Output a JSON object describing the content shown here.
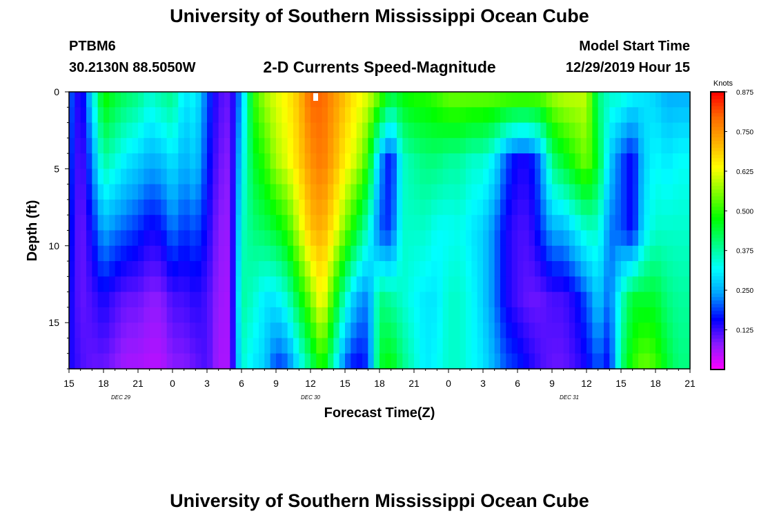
{
  "header": {
    "title": "University of Southern Mississippi Ocean Cube",
    "station": "PTBM6",
    "coords": "30.2130N 88.5050W",
    "subtitle": "2-D Currents Speed-Magnitude",
    "model_start_label": "Model Start Time",
    "model_start_value": "12/29/2019 Hour 15"
  },
  "footer": {
    "title": "University of Southern Mississippi Ocean Cube"
  },
  "colors": {
    "colorbar": [
      "#ff00ff",
      "#8c1aff",
      "#0000ff",
      "#00a0ff",
      "#00ffff",
      "#00ff80",
      "#00ff00",
      "#80ff00",
      "#ffff00",
      "#ffb000",
      "#ff6a00",
      "#ff0000"
    ]
  },
  "chart_data": {
    "type": "heatmap",
    "title": "2-D Currents Speed-Magnitude",
    "xlabel": "Forecast Time(Z)",
    "ylabel": "Depth (ft)",
    "x_unit": "hours since 12/29/2019 15Z",
    "xlim": [
      0,
      54
    ],
    "ylim": [
      18,
      0
    ],
    "x_ticks": [
      {
        "hour": 0,
        "label": "15"
      },
      {
        "hour": 3,
        "label": "18"
      },
      {
        "hour": 6,
        "label": "21"
      },
      {
        "hour": 9,
        "label": "0"
      },
      {
        "hour": 12,
        "label": "3"
      },
      {
        "hour": 15,
        "label": "6"
      },
      {
        "hour": 18,
        "label": "9"
      },
      {
        "hour": 21,
        "label": "12"
      },
      {
        "hour": 24,
        "label": "15"
      },
      {
        "hour": 27,
        "label": "18"
      },
      {
        "hour": 30,
        "label": "21"
      },
      {
        "hour": 33,
        "label": "0"
      },
      {
        "hour": 36,
        "label": "3"
      },
      {
        "hour": 39,
        "label": "6"
      },
      {
        "hour": 42,
        "label": "9"
      },
      {
        "hour": 45,
        "label": "12"
      },
      {
        "hour": 48,
        "label": "15"
      },
      {
        "hour": 51,
        "label": "18"
      },
      {
        "hour": 54,
        "label": "21"
      }
    ],
    "date_labels": [
      {
        "hour": 4.5,
        "label": "DEC 29"
      },
      {
        "hour": 21,
        "label": "DEC 30"
      },
      {
        "hour": 43.5,
        "label": "DEC 31"
      }
    ],
    "y_ticks": [
      {
        "depth": 0,
        "label": "0"
      },
      {
        "depth": 5,
        "label": "5"
      },
      {
        "depth": 10,
        "label": "10"
      },
      {
        "depth": 15,
        "label": "15"
      }
    ],
    "colorbar": {
      "title": "Knots",
      "range": [
        0.0,
        0.875
      ],
      "ticks": [
        {
          "value": 0.125,
          "label": "0.125"
        },
        {
          "value": 0.25,
          "label": "0.250"
        },
        {
          "value": 0.375,
          "label": "0.375"
        },
        {
          "value": 0.5,
          "label": "0.500"
        },
        {
          "value": 0.625,
          "label": "0.625"
        },
        {
          "value": 0.75,
          "label": "0.750"
        },
        {
          "value": 0.875,
          "label": "0.875"
        }
      ]
    },
    "grid_hours": [
      0,
      0.5,
      1,
      1.5,
      2,
      2.5,
      3,
      3.5,
      4,
      4.5,
      5,
      5.5,
      6,
      6.5,
      7,
      7.5,
      8,
      8.5,
      9,
      9.5,
      10,
      10.5,
      11,
      11.5,
      12,
      12.5,
      13,
      13.5,
      14,
      14.5,
      15,
      15.5,
      16,
      16.5,
      17,
      17.5,
      18,
      18.5,
      19,
      19.5,
      20,
      20.5,
      21,
      21.5,
      22,
      22.5,
      23,
      23.5,
      24,
      24.5,
      25,
      25.5,
      26,
      26.5,
      27,
      27.5,
      28,
      28.5,
      29,
      29.5,
      30,
      30.5,
      31,
      31.5,
      32,
      32.5,
      33,
      33.5,
      34,
      34.5,
      35,
      35.5,
      36,
      36.5,
      37,
      37.5,
      38,
      38.5,
      39,
      39.5,
      40,
      40.5,
      41,
      41.5,
      42,
      42.5,
      43,
      43.5,
      44,
      44.5,
      45,
      45.5,
      46,
      46.5,
      47,
      47.5,
      48,
      48.5,
      49,
      49.5,
      50,
      50.5,
      51,
      51.5,
      52,
      52.5,
      53,
      53.5
    ],
    "grid_depths": [
      0,
      1,
      2,
      3,
      4,
      5,
      6,
      7,
      8,
      9,
      10,
      11,
      12,
      13,
      14,
      15,
      16,
      17
    ],
    "profile_hours": [
      0,
      1,
      2,
      3,
      4,
      5,
      6,
      7,
      8,
      9,
      10,
      11,
      12,
      13,
      14,
      15,
      16,
      17,
      18,
      19,
      20,
      21,
      22,
      23,
      24,
      25,
      26,
      27,
      28,
      29,
      30,
      31,
      32,
      33,
      34,
      35,
      36,
      37,
      38,
      39,
      40,
      41,
      42,
      43,
      44,
      45,
      46,
      47,
      48,
      49,
      50,
      51,
      52,
      53,
      54
    ],
    "profile_depths": [
      0,
      4.5,
      9,
      13.5,
      18
    ],
    "profile_speeds_knots": [
      [
        0.22,
        0.2,
        0.18,
        0.16,
        0.15
      ],
      [
        0.12,
        0.1,
        0.09,
        0.1,
        0.12
      ],
      [
        0.3,
        0.22,
        0.16,
        0.12,
        0.1
      ],
      [
        0.5,
        0.38,
        0.25,
        0.15,
        0.1
      ],
      [
        0.45,
        0.34,
        0.22,
        0.12,
        0.08
      ],
      [
        0.42,
        0.3,
        0.2,
        0.1,
        0.06
      ],
      [
        0.4,
        0.28,
        0.18,
        0.1,
        0.06
      ],
      [
        0.35,
        0.25,
        0.15,
        0.08,
        0.05
      ],
      [
        0.38,
        0.26,
        0.16,
        0.08,
        0.05
      ],
      [
        0.4,
        0.3,
        0.22,
        0.12,
        0.08
      ],
      [
        0.3,
        0.25,
        0.18,
        0.12,
        0.08
      ],
      [
        0.32,
        0.28,
        0.2,
        0.14,
        0.1
      ],
      [
        0.2,
        0.18,
        0.15,
        0.12,
        0.12
      ],
      [
        0.12,
        0.1,
        0.08,
        0.07,
        0.06
      ],
      [
        0.1,
        0.08,
        0.07,
        0.06,
        0.06
      ],
      [
        0.25,
        0.3,
        0.35,
        0.38,
        0.35
      ],
      [
        0.5,
        0.45,
        0.4,
        0.35,
        0.3
      ],
      [
        0.58,
        0.5,
        0.42,
        0.3,
        0.28
      ],
      [
        0.62,
        0.58,
        0.45,
        0.3,
        0.18
      ],
      [
        0.65,
        0.62,
        0.5,
        0.35,
        0.2
      ],
      [
        0.7,
        0.68,
        0.6,
        0.45,
        0.3
      ],
      [
        0.8,
        0.75,
        0.7,
        0.55,
        0.4
      ],
      [
        0.8,
        0.78,
        0.72,
        0.65,
        0.5
      ],
      [
        0.75,
        0.72,
        0.65,
        0.5,
        0.35
      ],
      [
        0.7,
        0.65,
        0.55,
        0.35,
        0.2
      ],
      [
        0.65,
        0.6,
        0.45,
        0.25,
        0.15
      ],
      [
        0.62,
        0.5,
        0.35,
        0.22,
        0.18
      ],
      [
        0.55,
        0.25,
        0.2,
        0.4,
        0.45
      ],
      [
        0.45,
        0.15,
        0.18,
        0.38,
        0.48
      ],
      [
        0.48,
        0.35,
        0.35,
        0.35,
        0.4
      ],
      [
        0.5,
        0.38,
        0.35,
        0.32,
        0.35
      ],
      [
        0.5,
        0.4,
        0.35,
        0.3,
        0.3
      ],
      [
        0.52,
        0.4,
        0.32,
        0.3,
        0.32
      ],
      [
        0.55,
        0.38,
        0.32,
        0.35,
        0.35
      ],
      [
        0.55,
        0.38,
        0.33,
        0.35,
        0.35
      ],
      [
        0.55,
        0.35,
        0.3,
        0.32,
        0.32
      ],
      [
        0.55,
        0.35,
        0.28,
        0.28,
        0.3
      ],
      [
        0.55,
        0.3,
        0.22,
        0.22,
        0.25
      ],
      [
        0.55,
        0.2,
        0.15,
        0.15,
        0.2
      ],
      [
        0.55,
        0.15,
        0.12,
        0.12,
        0.18
      ],
      [
        0.55,
        0.15,
        0.12,
        0.1,
        0.15
      ],
      [
        0.55,
        0.22,
        0.18,
        0.1,
        0.12
      ],
      [
        0.58,
        0.4,
        0.25,
        0.12,
        0.1
      ],
      [
        0.6,
        0.45,
        0.25,
        0.12,
        0.1
      ],
      [
        0.6,
        0.5,
        0.3,
        0.15,
        0.12
      ],
      [
        0.6,
        0.55,
        0.35,
        0.2,
        0.15
      ],
      [
        0.4,
        0.45,
        0.35,
        0.28,
        0.2
      ],
      [
        0.35,
        0.28,
        0.22,
        0.2,
        0.15
      ],
      [
        0.35,
        0.2,
        0.2,
        0.35,
        0.4
      ],
      [
        0.32,
        0.15,
        0.15,
        0.45,
        0.5
      ],
      [
        0.3,
        0.28,
        0.3,
        0.45,
        0.55
      ],
      [
        0.28,
        0.32,
        0.35,
        0.45,
        0.52
      ],
      [
        0.25,
        0.3,
        0.35,
        0.4,
        0.45
      ],
      [
        0.25,
        0.32,
        0.35,
        0.38,
        0.4
      ],
      [
        0.25,
        0.32,
        0.35,
        0.38,
        0.4
      ]
    ]
  }
}
